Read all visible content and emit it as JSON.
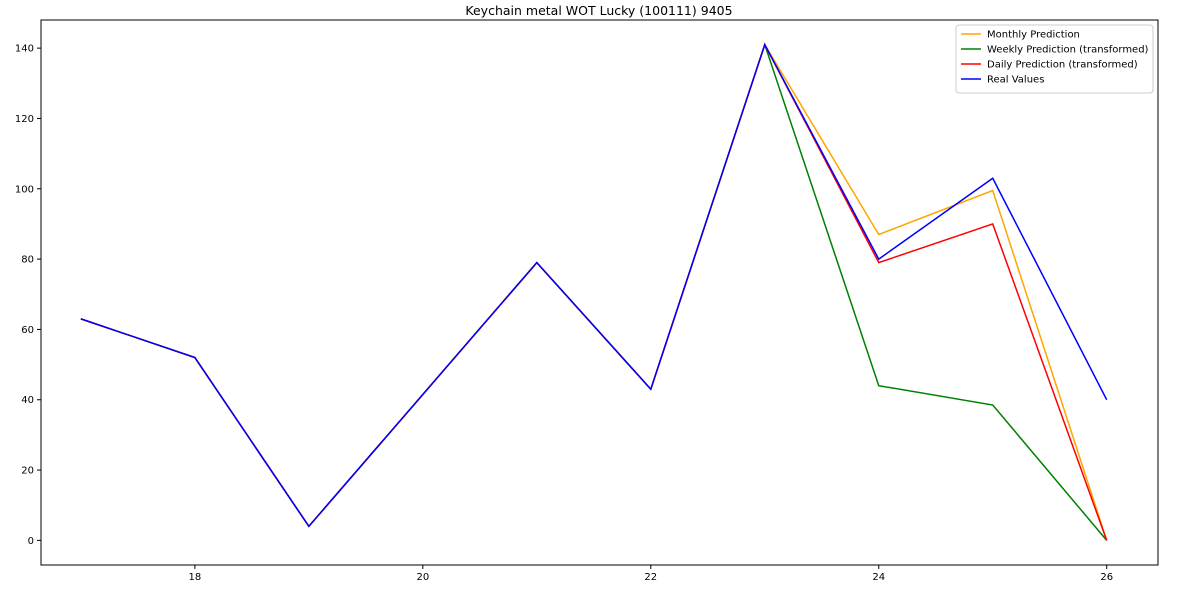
{
  "chart_data": {
    "type": "line",
    "title": "Keychain metal WOT Lucky (100111) 9405",
    "xlabel": "",
    "ylabel": "",
    "x": [
      17,
      18,
      19,
      20,
      21,
      22,
      23,
      24,
      25,
      26
    ],
    "xlim": [
      16.65,
      26.45
    ],
    "ylim": [
      -7,
      148
    ],
    "xticks": [
      18,
      20,
      22,
      24,
      26
    ],
    "yticks": [
      0,
      20,
      40,
      60,
      80,
      100,
      120,
      140
    ],
    "grid": false,
    "legend_position": "top-right",
    "series": [
      {
        "name": "Monthly Prediction",
        "color": "#ffa500",
        "values": [
          63,
          52,
          4,
          41.5,
          79,
          43,
          141,
          87,
          99.5,
          0
        ]
      },
      {
        "name": "Weekly Prediction (transformed)",
        "color": "#008000",
        "values": [
          63,
          52,
          4,
          41.5,
          79,
          43,
          141,
          44,
          38.5,
          0
        ]
      },
      {
        "name": "Daily Prediction (transformed)",
        "color": "#ff0000",
        "values": [
          63,
          52,
          4,
          41.5,
          79,
          43,
          141,
          79,
          90,
          0
        ]
      },
      {
        "name": "Real Values",
        "color": "#0000ff",
        "values": [
          63,
          52,
          4,
          41.5,
          79,
          43,
          141,
          80,
          103,
          40
        ]
      }
    ]
  }
}
